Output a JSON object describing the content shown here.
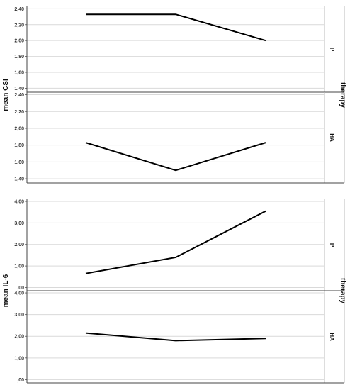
{
  "chart_data": [
    {
      "type": "line",
      "ylabel": "mean CSI",
      "facet_label": "therapy",
      "panels": [
        {
          "strip_label": "P",
          "x": [
            1,
            2,
            3
          ],
          "values": [
            2.33,
            2.33,
            2.0
          ],
          "ylim": [
            1.35,
            2.43
          ],
          "yticks": [
            "1,40",
            "1,60",
            "1,80",
            "2,00",
            "2,20",
            "2,40"
          ],
          "ytick_values": [
            1.4,
            1.6,
            1.8,
            2.0,
            2.2,
            2.4
          ]
        },
        {
          "strip_label": "HA",
          "x": [
            1,
            2,
            3
          ],
          "values": [
            1.83,
            1.5,
            1.83
          ],
          "ylim": [
            1.35,
            2.43
          ],
          "yticks": [
            "1,40",
            "1,60",
            "1,80",
            "2,00",
            "2,20",
            "2,40"
          ],
          "ytick_values": [
            1.4,
            1.6,
            1.8,
            2.0,
            2.2,
            2.4
          ]
        }
      ],
      "line_color": "#000000",
      "grid": true
    },
    {
      "type": "line",
      "ylabel": "mean IL-6",
      "facet_label": "therapy",
      "panels": [
        {
          "strip_label": "P",
          "x": [
            1,
            2,
            3
          ],
          "values": [
            0.65,
            1.4,
            3.55
          ],
          "ylim": [
            -0.15,
            4.1
          ],
          "yticks": [
            ",00",
            "1,00",
            "2,00",
            "3,00",
            "4,00"
          ],
          "ytick_values": [
            0,
            1,
            2,
            3,
            4
          ]
        },
        {
          "strip_label": "HA",
          "x": [
            1,
            2,
            3
          ],
          "values": [
            2.15,
            1.8,
            1.9
          ],
          "ylim": [
            -0.15,
            4.1
          ],
          "yticks": [
            ",00",
            "1,00",
            "2,00",
            "3,00",
            "4,00"
          ],
          "ytick_values": [
            0,
            1,
            2,
            3,
            4
          ]
        }
      ],
      "line_color": "#000000",
      "grid": true
    }
  ]
}
